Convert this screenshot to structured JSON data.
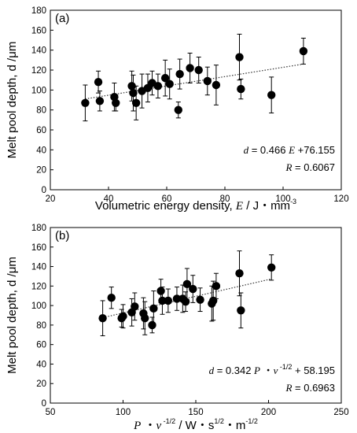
{
  "chart_data": [
    {
      "type": "scatter",
      "panel_label": "(a)",
      "xlabel_text": "Volumetric energy density, ",
      "xlabel_var": "E",
      "xlabel_unit": " / J・mm",
      "xlabel_sup": "-3",
      "ylabel": "Melt pool depth, d /μm",
      "xlim": [
        20,
        120
      ],
      "ylim": [
        0,
        180
      ],
      "xticks": [
        20,
        40,
        60,
        80,
        100,
        120
      ],
      "yticks": [
        0,
        20,
        40,
        60,
        80,
        100,
        120,
        140,
        160,
        180
      ],
      "trendline": {
        "slope": 0.466,
        "intercept": 76.155,
        "x_range": [
          32,
          107
        ]
      },
      "equation": {
        "line1_var": "d",
        "line1_mid": " = 0.466 ",
        "line1_var2": "E",
        "line1_end": " +76.155",
        "line2_var": "R",
        "line2_end": " = 0.6067"
      },
      "points": [
        {
          "x": 32,
          "y": 87,
          "err": 18
        },
        {
          "x": 36.5,
          "y": 108,
          "err": 11
        },
        {
          "x": 37,
          "y": 89,
          "err": 10
        },
        {
          "x": 42,
          "y": 93,
          "err": 14
        },
        {
          "x": 42.5,
          "y": 87,
          "err": 8
        },
        {
          "x": 48,
          "y": 104,
          "err": 15
        },
        {
          "x": 48.5,
          "y": 97,
          "err": 18
        },
        {
          "x": 49.5,
          "y": 87,
          "err": 17
        },
        {
          "x": 51.5,
          "y": 99,
          "err": 17
        },
        {
          "x": 53.5,
          "y": 102,
          "err": 14
        },
        {
          "x": 55,
          "y": 107,
          "err": 12
        },
        {
          "x": 57,
          "y": 104,
          "err": 12
        },
        {
          "x": 59.5,
          "y": 112,
          "err": 18
        },
        {
          "x": 61,
          "y": 106,
          "err": 15
        },
        {
          "x": 64,
          "y": 80,
          "err": 8
        },
        {
          "x": 64.5,
          "y": 116,
          "err": 15
        },
        {
          "x": 68,
          "y": 122,
          "err": 15
        },
        {
          "x": 71,
          "y": 120,
          "err": 13
        },
        {
          "x": 74,
          "y": 109,
          "err": 14
        },
        {
          "x": 77,
          "y": 105,
          "err": 20
        },
        {
          "x": 85,
          "y": 133,
          "err": 23
        },
        {
          "x": 85.5,
          "y": 101,
          "err": 10
        },
        {
          "x": 96,
          "y": 95,
          "err": 18
        },
        {
          "x": 107,
          "y": 139,
          "err": 13
        }
      ]
    },
    {
      "type": "scatter",
      "panel_label": "(b)",
      "xlabel_var": "P",
      "xlabel_mid": " ・",
      "xlabel_var2": "v",
      "xlabel_sup": " -1/2",
      "xlabel_unit": " / W・s",
      "xlabel_sup2": "1/2",
      "xlabel_unit2": "・m",
      "xlabel_sup3": "-1/2",
      "ylabel": "Melt pool depth, d /μm",
      "xlim": [
        50,
        250
      ],
      "ylim": [
        0,
        180
      ],
      "xticks": [
        50,
        100,
        150,
        200,
        250
      ],
      "yticks": [
        0,
        20,
        40,
        60,
        80,
        100,
        120,
        140,
        160,
        180
      ],
      "trendline": {
        "slope": 0.342,
        "intercept": 58.195,
        "x_range": [
          86,
          202
        ]
      },
      "equation": {
        "line1_var": "d",
        "line1_mid": " = 0.342 ",
        "line1_var2": "P",
        "line1_mid2": " ・",
        "line1_var3": "v",
        "line1_sup": " -1/2",
        "line1_end": " + 58.195",
        "line2_var": "R",
        "line2_end": " = 0.6963"
      },
      "points": [
        {
          "x": 86,
          "y": 87,
          "err": 18
        },
        {
          "x": 92,
          "y": 108,
          "err": 11
        },
        {
          "x": 99,
          "y": 87,
          "err": 9
        },
        {
          "x": 100,
          "y": 89,
          "err": 12
        },
        {
          "x": 106,
          "y": 93,
          "err": 14
        },
        {
          "x": 108,
          "y": 99,
          "err": 14
        },
        {
          "x": 114,
          "y": 92,
          "err": 16
        },
        {
          "x": 115,
          "y": 87,
          "err": 17
        },
        {
          "x": 120,
          "y": 80,
          "err": 8
        },
        {
          "x": 121,
          "y": 97,
          "err": 18
        },
        {
          "x": 126,
          "y": 115,
          "err": 12
        },
        {
          "x": 127,
          "y": 105,
          "err": 14
        },
        {
          "x": 131,
          "y": 105,
          "err": 12
        },
        {
          "x": 137,
          "y": 107,
          "err": 12
        },
        {
          "x": 141,
          "y": 107,
          "err": 14
        },
        {
          "x": 143,
          "y": 104,
          "err": 10
        },
        {
          "x": 144,
          "y": 122,
          "err": 16
        },
        {
          "x": 148,
          "y": 117,
          "err": 14
        },
        {
          "x": 153,
          "y": 106,
          "err": 12
        },
        {
          "x": 161,
          "y": 102,
          "err": 18
        },
        {
          "x": 162,
          "y": 105,
          "err": 20
        },
        {
          "x": 164,
          "y": 120,
          "err": 13
        },
        {
          "x": 180,
          "y": 133,
          "err": 23
        },
        {
          "x": 181,
          "y": 95,
          "err": 18
        },
        {
          "x": 202,
          "y": 139,
          "err": 13
        }
      ]
    }
  ]
}
